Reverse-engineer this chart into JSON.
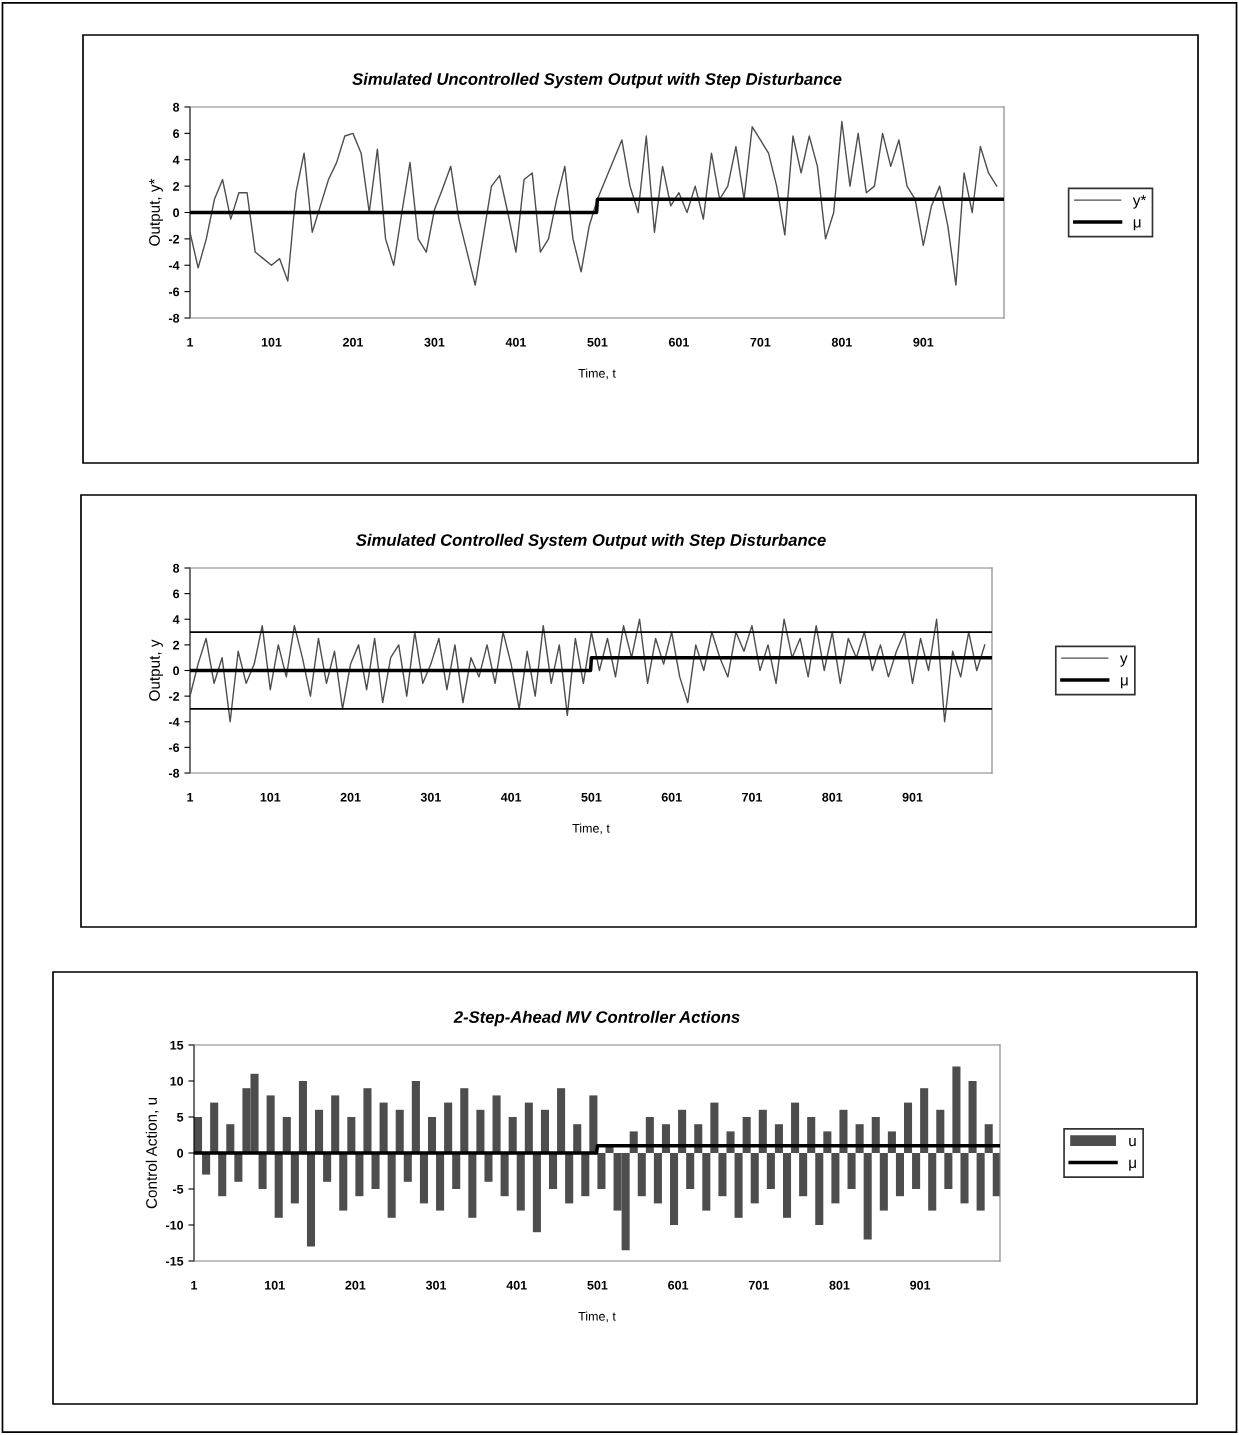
{
  "chart_data": [
    {
      "type": "line",
      "title": "Simulated Uncontrolled System Output with Step Disturbance",
      "xlabel": "Time, t",
      "ylabel": "Output, y*",
      "xlim": [
        1,
        1000
      ],
      "xticks": [
        1,
        101,
        201,
        301,
        401,
        501,
        601,
        701,
        801,
        901
      ],
      "ylim": [
        -8,
        8
      ],
      "yticks": [
        -8,
        -6,
        -4,
        -2,
        0,
        2,
        4,
        6,
        8
      ],
      "grid": false,
      "legend": "right",
      "series": [
        {
          "name": "y*",
          "color": "#4d4d4d",
          "x": [
            1,
            11,
            21,
            31,
            41,
            51,
            61,
            71,
            81,
            91,
            101,
            111,
            121,
            131,
            141,
            151,
            161,
            171,
            181,
            191,
            201,
            211,
            221,
            231,
            241,
            251,
            261,
            271,
            281,
            291,
            301,
            311,
            321,
            331,
            341,
            351,
            361,
            371,
            381,
            391,
            401,
            411,
            421,
            431,
            441,
            451,
            461,
            471,
            481,
            491,
            501,
            511,
            521,
            531,
            541,
            551,
            561,
            571,
            581,
            591,
            601,
            611,
            621,
            631,
            641,
            651,
            661,
            671,
            681,
            691,
            701,
            711,
            721,
            731,
            741,
            751,
            761,
            771,
            781,
            791,
            801,
            811,
            821,
            831,
            841,
            851,
            861,
            871,
            881,
            891,
            901,
            911,
            921,
            931,
            941,
            951,
            961,
            971,
            981,
            991
          ],
          "values": [
            -1.5,
            -4.2,
            -2,
            1,
            2.5,
            -0.5,
            1.5,
            1.5,
            -3,
            -3.5,
            -4,
            -3.5,
            -5.2,
            1.5,
            4.5,
            -1.5,
            0.5,
            2.5,
            3.8,
            5.8,
            6,
            4.5,
            0,
            4.8,
            -2,
            -4,
            0,
            3.8,
            -2,
            -3,
            0.2,
            1.8,
            3.5,
            -0.5,
            -3,
            -5.5,
            -1.8,
            2,
            2.8,
            0,
            -3,
            2.5,
            3,
            -3,
            -2,
            1,
            3.5,
            -2,
            -4.5,
            -1,
            1,
            2.5,
            4,
            5.5,
            2,
            0,
            5.8,
            -1.5,
            3.5,
            0.5,
            1.5,
            0,
            2,
            -0.5,
            4.5,
            1,
            2,
            5,
            1,
            6.5,
            5.5,
            4.5,
            2,
            -1.7,
            5.8,
            3,
            5.8,
            3.5,
            -2,
            0,
            6.9,
            2,
            6,
            1.5,
            2,
            6,
            3.5,
            5.5,
            2,
            1,
            -2.5,
            0.5,
            2,
            -1,
            -5.5,
            3,
            0,
            5,
            3,
            2
          ]
        },
        {
          "name": "μ",
          "type": "line",
          "color": "#000000",
          "x": [
            1,
            500,
            501,
            1000
          ],
          "values": [
            0,
            0,
            1,
            1
          ]
        }
      ]
    },
    {
      "type": "line",
      "title": "Simulated Controlled System Output with Step Disturbance",
      "xlabel": "Time, t",
      "ylabel": "Output, y",
      "xlim": [
        1,
        1000
      ],
      "xticks": [
        1,
        101,
        201,
        301,
        401,
        501,
        601,
        701,
        801,
        901
      ],
      "ylim": [
        -8,
        8
      ],
      "yticks": [
        -8,
        -6,
        -4,
        -2,
        0,
        2,
        4,
        6,
        8
      ],
      "grid": false,
      "legend": "right",
      "ref_lines": [
        {
          "axis": "y",
          "value": 3,
          "color": "#000000"
        },
        {
          "axis": "y",
          "value": -3,
          "color": "#000000"
        }
      ],
      "series": [
        {
          "name": "y",
          "color": "#4d4d4d",
          "x": [
            1,
            11,
            21,
            31,
            41,
            51,
            61,
            71,
            81,
            91,
            101,
            111,
            121,
            131,
            141,
            151,
            161,
            171,
            181,
            191,
            201,
            211,
            221,
            231,
            241,
            251,
            261,
            271,
            281,
            291,
            301,
            311,
            321,
            331,
            341,
            351,
            361,
            371,
            381,
            391,
            401,
            411,
            421,
            431,
            441,
            451,
            461,
            471,
            481,
            491,
            501,
            511,
            521,
            531,
            541,
            551,
            561,
            571,
            581,
            591,
            601,
            611,
            621,
            631,
            641,
            651,
            661,
            671,
            681,
            691,
            701,
            711,
            721,
            731,
            741,
            751,
            761,
            771,
            781,
            791,
            801,
            811,
            821,
            831,
            841,
            851,
            861,
            871,
            881,
            891,
            901,
            911,
            921,
            931,
            941,
            951,
            961,
            971,
            981,
            991
          ],
          "values": [
            -2,
            0.5,
            2.5,
            -1,
            1,
            -4,
            1.5,
            -1,
            0.5,
            3.5,
            -1.5,
            2,
            -0.5,
            3.5,
            1,
            -2,
            2.5,
            -1,
            1.5,
            -3,
            0.5,
            2,
            -1.5,
            2.5,
            -2.5,
            1,
            2,
            -2,
            3,
            -1,
            0.5,
            2.5,
            -1.5,
            2,
            -2.5,
            1,
            -0.5,
            2,
            -1,
            3,
            0.5,
            -3,
            1.5,
            -2,
            3.5,
            -1,
            2,
            -3.5,
            2.5,
            -1,
            3,
            0,
            2.5,
            -0.5,
            3.5,
            1,
            4,
            -1,
            2.5,
            0.5,
            3,
            -0.5,
            -2.5,
            2,
            0,
            3,
            1,
            -0.5,
            3,
            1.5,
            3.5,
            0,
            2,
            -1,
            4,
            1,
            2.5,
            -0.5,
            3.5,
            0,
            3,
            -1,
            2.5,
            1,
            3,
            0,
            2,
            -0.5,
            1.5,
            3,
            -1,
            2.5,
            0,
            4,
            -4,
            1.5,
            -0.5,
            3,
            0,
            2
          ]
        },
        {
          "name": "μ",
          "type": "line",
          "color": "#000000",
          "x": [
            1,
            500,
            501,
            1000
          ],
          "values": [
            0,
            0,
            1,
            1
          ]
        }
      ]
    },
    {
      "type": "bar",
      "title": "2-Step-Ahead MV Controller Actions",
      "xlabel": "Time, t",
      "ylabel": "Control Action, u",
      "xlim": [
        1,
        1000
      ],
      "xticks": [
        1,
        101,
        201,
        301,
        401,
        501,
        601,
        701,
        801,
        901
      ],
      "ylim": [
        -15,
        15
      ],
      "yticks": [
        -15,
        -10,
        -5,
        0,
        5,
        10,
        15
      ],
      "grid": false,
      "legend": "right",
      "series": [
        {
          "name": "u",
          "color": "#4d4d4d",
          "x": [
            1,
            11,
            21,
            31,
            41,
            51,
            61,
            71,
            81,
            91,
            101,
            111,
            121,
            131,
            141,
            151,
            161,
            171,
            181,
            191,
            201,
            211,
            221,
            231,
            241,
            251,
            261,
            271,
            281,
            291,
            301,
            311,
            321,
            331,
            341,
            351,
            361,
            371,
            381,
            391,
            401,
            411,
            421,
            431,
            441,
            451,
            461,
            471,
            481,
            491,
            501,
            511,
            521,
            531,
            541,
            551,
            561,
            571,
            581,
            591,
            601,
            611,
            621,
            631,
            641,
            651,
            661,
            671,
            681,
            691,
            701,
            711,
            721,
            731,
            741,
            751,
            761,
            771,
            781,
            791,
            801,
            811,
            821,
            831,
            841,
            851,
            861,
            871,
            881,
            891,
            901,
            911,
            921,
            931,
            941,
            951,
            961,
            971,
            981,
            991
          ],
          "values": [
            5,
            -3,
            7,
            -6,
            4,
            -4,
            9,
            11,
            -5,
            8,
            -9,
            5,
            -7,
            10,
            -13,
            6,
            -4,
            8,
            -8,
            5,
            -6,
            9,
            -5,
            7,
            -9,
            6,
            -4,
            10,
            -7,
            5,
            -8,
            7,
            -5,
            9,
            -9,
            6,
            -4,
            8,
            -6,
            5,
            -8,
            7,
            -11,
            6,
            -5,
            9,
            -7,
            4,
            -6,
            8,
            -5,
            1,
            -8,
            -13.5,
            3,
            -6,
            5,
            -7,
            4,
            -10,
            6,
            -5,
            4,
            -8,
            7,
            -6,
            3,
            -9,
            5,
            -7,
            6,
            -5,
            4,
            -9,
            7,
            -6,
            5,
            -10,
            3,
            -7,
            6,
            -5,
            4,
            -12,
            5,
            -8,
            3,
            -6,
            7,
            -5,
            9,
            -8,
            6,
            -5,
            12,
            -7,
            10,
            -8,
            4,
            -6
          ]
        },
        {
          "name": "μ",
          "type": "line",
          "color": "#000000",
          "x": [
            1,
            500,
            501,
            1000
          ],
          "values": [
            0,
            0,
            1,
            1
          ]
        }
      ]
    }
  ]
}
